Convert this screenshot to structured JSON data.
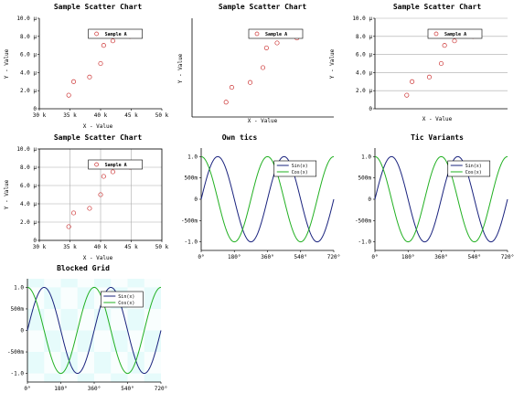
{
  "colors": {
    "scatter": "#cc3333",
    "sin": "#1a237e",
    "cos": "#22b022",
    "grid": "#aaaaaa",
    "blocked": "#e6fbfb"
  },
  "chart_data": [
    {
      "type": "scatter",
      "title": "Sample Scatter Chart",
      "xlabel": "X - Value",
      "ylabel": "Y - Value",
      "xlim": [
        30000,
        50000
      ],
      "ylim": [
        0,
        1e-05
      ],
      "x_ticks": [
        "30 k",
        "35 k",
        "40 k",
        "45 k",
        "50 k"
      ],
      "y_ticks": [
        "0",
        "2.0 µ",
        "4.0 µ",
        "6.0 µ",
        "8.0 µ",
        "10.0 µ"
      ],
      "grid": "none",
      "legend": "top-right",
      "series": [
        {
          "name": "Sample A",
          "x": [
            34800,
            35600,
            38200,
            40000,
            40500,
            42000,
            44800
          ],
          "y": [
            1.5e-06,
            3e-06,
            3.5e-06,
            5e-06,
            7e-06,
            7.5e-06,
            8e-06
          ]
        }
      ]
    },
    {
      "type": "scatter",
      "title": "Sample Scatter Chart",
      "xlabel": "X - Value",
      "ylabel": "Y - Value",
      "xlim": [
        30000,
        50000
      ],
      "ylim": [
        0,
        1e-05
      ],
      "x_ticks": [],
      "y_ticks": [],
      "grid": "none",
      "legend": "top-right",
      "series": [
        {
          "name": "Sample A",
          "x": [
            34800,
            35600,
            38200,
            40000,
            40500,
            42000,
            44800
          ],
          "y": [
            1.5e-06,
            3e-06,
            3.5e-06,
            5e-06,
            7e-06,
            7.5e-06,
            8e-06
          ]
        }
      ]
    },
    {
      "type": "scatter",
      "title": "Sample Scatter Chart",
      "xlabel": "X - Value",
      "ylabel": "Y - Value",
      "xlim": [
        30000,
        50000
      ],
      "ylim": [
        0,
        1e-05
      ],
      "x_ticks": [],
      "y_ticks": [
        "0",
        "2.0 µ",
        "4.0 µ",
        "6.0 µ",
        "8.0 µ",
        "10.0 µ"
      ],
      "grid": "horizontal",
      "legend": "top-right",
      "series": [
        {
          "name": "Sample A",
          "x": [
            34800,
            35600,
            38200,
            40000,
            40500,
            42000,
            44800
          ],
          "y": [
            1.5e-06,
            3e-06,
            3.5e-06,
            5e-06,
            7e-06,
            7.5e-06,
            8e-06
          ]
        }
      ]
    },
    {
      "type": "scatter",
      "title": "Sample Scatter Chart",
      "xlabel": "X - Value",
      "ylabel": "Y - Value",
      "xlim": [
        30000,
        50000
      ],
      "ylim": [
        0,
        1e-05
      ],
      "x_ticks": [
        "30 k",
        "35 k",
        "40 k",
        "45 k",
        "50 k"
      ],
      "y_ticks": [
        "0",
        "2.0 µ",
        "4.0 µ",
        "6.0 µ",
        "8.0 µ",
        "10.0 µ"
      ],
      "grid": "both",
      "legend": "top-right",
      "series": [
        {
          "name": "Sample A",
          "x": [
            34800,
            35600,
            38200,
            40000,
            40500,
            42000,
            44800
          ],
          "y": [
            1.5e-06,
            3e-06,
            3.5e-06,
            5e-06,
            7e-06,
            7.5e-06,
            8e-06
          ]
        }
      ]
    },
    {
      "type": "line",
      "title": "Own tics",
      "xlim": [
        0,
        720
      ],
      "ylim": [
        -1.2,
        1.2
      ],
      "x_ticks": [
        "0°",
        "180°",
        "360°",
        "540°",
        "720°"
      ],
      "y_ticks": [
        "-1.0",
        "-500m",
        "0",
        "500m",
        "1.0"
      ],
      "grid": "none",
      "legend": "top-right",
      "series": [
        {
          "name": "Sin(x)",
          "function": "sin",
          "x_range": [
            0,
            720
          ],
          "color_key": "sin"
        },
        {
          "name": "Cos(x)",
          "function": "cos",
          "x_range": [
            0,
            720
          ],
          "color_key": "cos"
        }
      ]
    },
    {
      "type": "line",
      "title": "Tic Variants",
      "xlim": [
        0,
        720
      ],
      "ylim": [
        -1.2,
        1.2
      ],
      "x_ticks": [
        "0°",
        "180°",
        "360°",
        "540°",
        "720°"
      ],
      "y_ticks": [
        "-1.0",
        "-500m",
        "0",
        "500m",
        "1.0"
      ],
      "grid": "none",
      "legend": "top-right",
      "series": [
        {
          "name": "Sin(x)",
          "function": "sin",
          "x_range": [
            0,
            720
          ],
          "color_key": "sin"
        },
        {
          "name": "Cos(x)",
          "function": "cos",
          "x_range": [
            0,
            720
          ],
          "color_key": "cos"
        }
      ]
    },
    {
      "type": "line",
      "title": "Blocked Grid",
      "xlim": [
        0,
        720
      ],
      "ylim": [
        -1.2,
        1.2
      ],
      "x_ticks": [
        "0°",
        "180°",
        "360°",
        "540°",
        "720°"
      ],
      "y_ticks": [
        "-1.0",
        "-500m",
        "0",
        "500m",
        "1.0"
      ],
      "grid": "blocked",
      "legend": "top-right",
      "series": [
        {
          "name": "Sin(x)",
          "function": "sin",
          "x_range": [
            0,
            720
          ],
          "color_key": "sin"
        },
        {
          "name": "Cos(x)",
          "function": "cos",
          "x_range": [
            0,
            720
          ],
          "color_key": "cos"
        }
      ]
    }
  ]
}
